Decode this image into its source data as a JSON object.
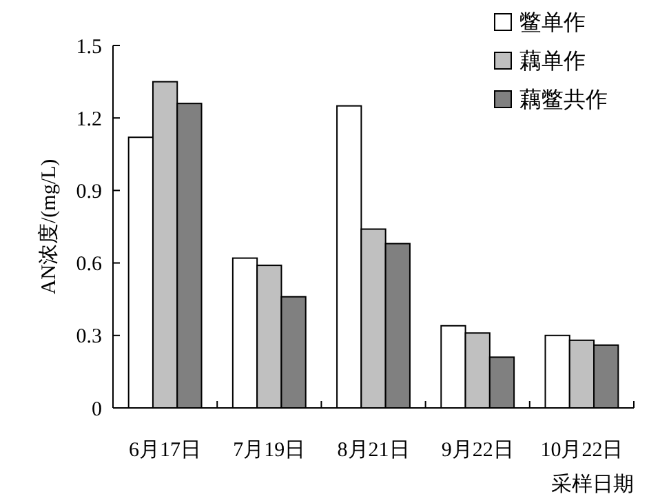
{
  "chart_data": {
    "type": "bar",
    "xlabel": "采样日期",
    "ylabel": "AN浓度/(mg/L)",
    "categories": [
      "6月17日",
      "7月19日",
      "8月21日",
      "9月22日",
      "10月22日"
    ],
    "series": [
      {
        "name": "鳖单作",
        "color": "#ffffff",
        "values": [
          1.12,
          0.62,
          1.25,
          0.34,
          0.3
        ]
      },
      {
        "name": "藕单作",
        "color": "#c0c0c0",
        "values": [
          1.35,
          0.59,
          0.74,
          0.31,
          0.28
        ]
      },
      {
        "name": "藕鳖共作",
        "color": "#808080",
        "values": [
          1.26,
          0.46,
          0.68,
          0.21,
          0.26
        ]
      }
    ],
    "ylim": [
      0,
      1.5
    ],
    "yticks": [
      0,
      0.3,
      0.6,
      0.9,
      1.2,
      1.5
    ],
    "grid": false,
    "legend": "top right"
  }
}
